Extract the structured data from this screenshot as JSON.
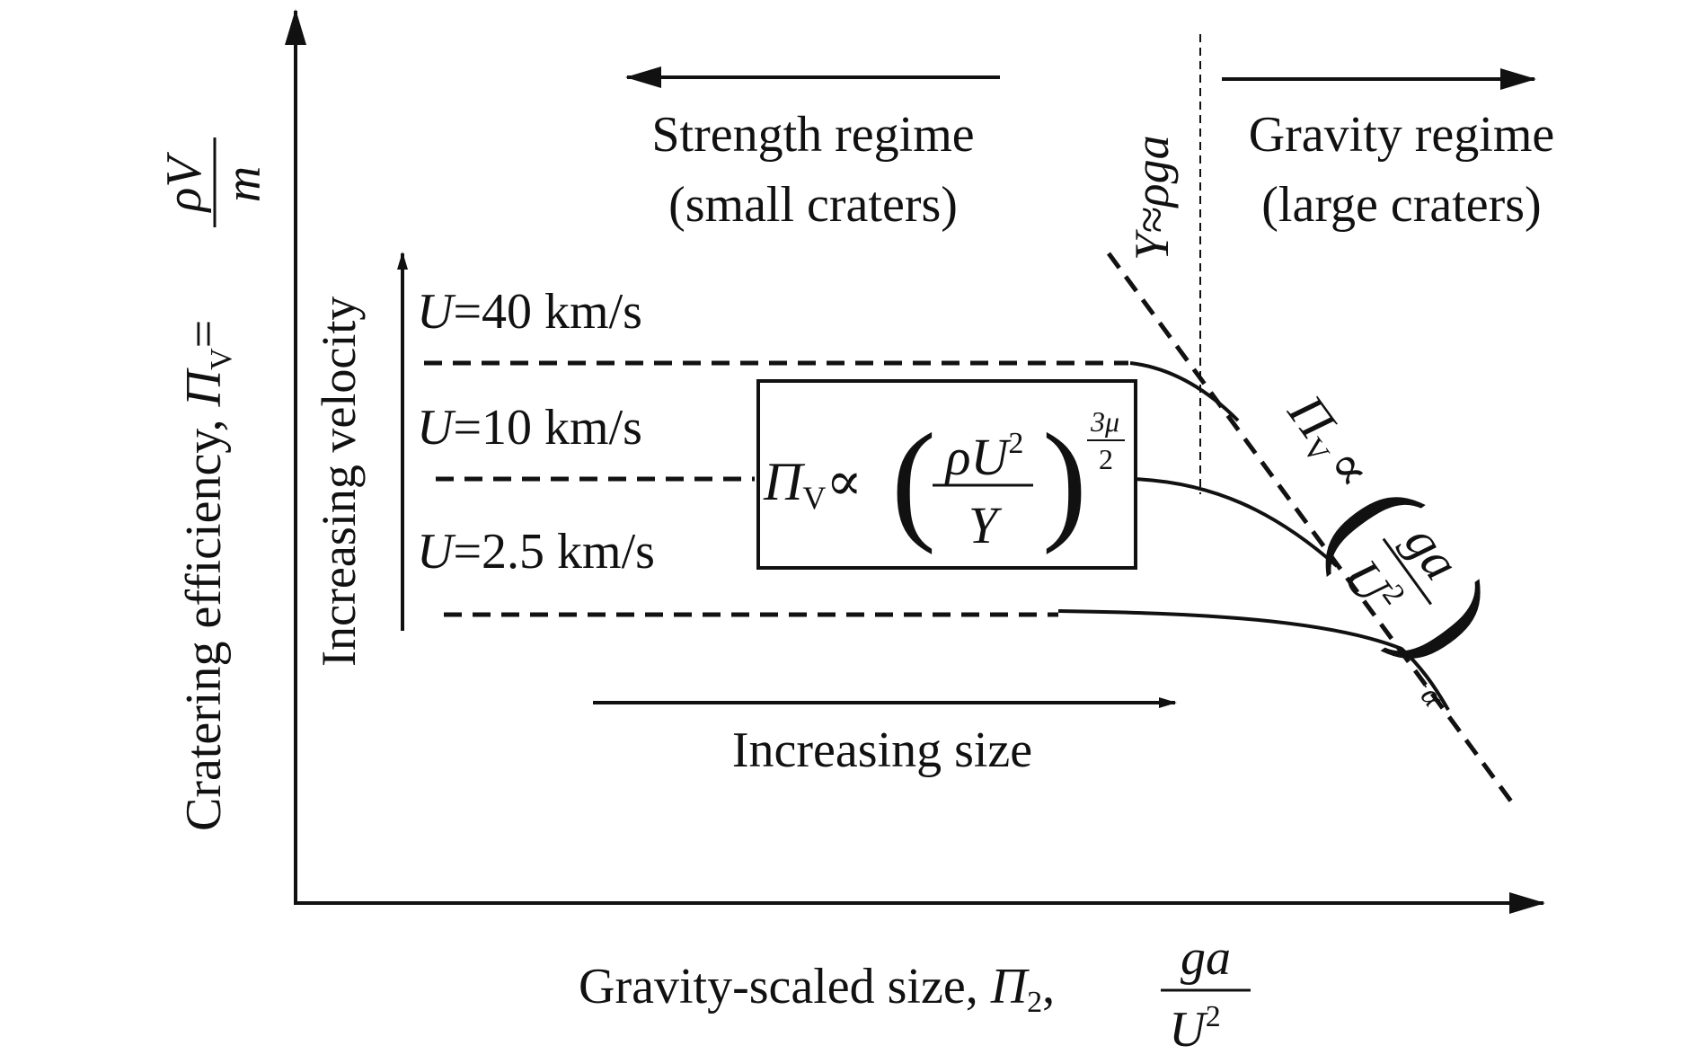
{
  "axes": {
    "x_label_text": "Gravity-scaled size, ",
    "x_label_pi": "Π",
    "x_label_sub": "2",
    "x_label_comma": ",",
    "x_frac_num": "ga",
    "x_frac_den_U": "U",
    "x_frac_den_exp": "2",
    "y_label_text": "Cratering efficiency, ",
    "y_label_pi": "Π",
    "y_label_sub": "V",
    "y_label_eq": "=",
    "y_frac_num": "ρV",
    "y_frac_den": "m"
  },
  "regimes": {
    "strength_line1": "Strength regime",
    "strength_line2": "(small craters)",
    "gravity_line1": "Gravity regime",
    "gravity_line2": "(large craters)",
    "transition_label": "Y≈ρga"
  },
  "velocity": {
    "axis_label": "Increasing velocity",
    "size_label": "Increasing size",
    "curves": [
      {
        "var": "U",
        "rest": "=40 km/s"
      },
      {
        "var": "U",
        "rest": "=10 km/s"
      },
      {
        "var": "U",
        "rest": "=2.5 km/s"
      }
    ]
  },
  "strength_formula": {
    "pi": "Π",
    "sub": "V",
    "prop": "∝",
    "lparen": "(",
    "rparen": ")",
    "num_rho": "ρ",
    "num_U": "U",
    "num_exp": "2",
    "den": "Y",
    "exp_num": "3μ",
    "exp_den": "2"
  },
  "gravity_formula": {
    "pi": "Π",
    "sub": "V",
    "prop": "∝",
    "lparen": "(",
    "rparen": ")",
    "num": "ga",
    "den_U": "U",
    "den_exp": "2",
    "exp": "−α"
  }
}
